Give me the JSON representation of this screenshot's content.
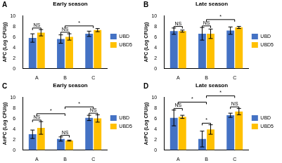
{
  "chart_data": [
    {
      "type": "bar",
      "panel_label": "A",
      "title": "Early season",
      "y_label": "APC (Log CFU/g)",
      "categories": [
        "A",
        "B",
        "C"
      ],
      "series": [
        {
          "name": "UBD",
          "color": "#4472c4",
          "values": [
            5.8,
            5.6,
            6.6
          ],
          "errors": [
            0.8,
            0.8,
            0.5
          ]
        },
        {
          "name": "UBD5",
          "color": "#ffc000",
          "values": [
            6.8,
            6.0,
            7.3
          ],
          "errors": [
            0.6,
            0.6,
            0.3
          ]
        }
      ],
      "ylim": [
        0,
        10
      ],
      "yticks": [
        0,
        2,
        4,
        6,
        8,
        10
      ],
      "grid": false,
      "legend": "right",
      "annotations": [
        {
          "text": "NS",
          "span": [
            "A",
            "A"
          ]
        },
        {
          "text": "NS",
          "span": [
            "B",
            "B"
          ]
        },
        {
          "text": "*",
          "span": [
            "B",
            "C"
          ]
        }
      ]
    },
    {
      "type": "bar",
      "panel_label": "B",
      "title": "Late season",
      "y_label": "APC (Log CFU/g)",
      "categories": [
        "A",
        "B",
        "C"
      ],
      "series": [
        {
          "name": "UBD",
          "color": "#4472c4",
          "values": [
            7.1,
            6.6,
            7.2
          ],
          "errors": [
            0.6,
            1.2,
            0.7
          ]
        },
        {
          "name": "UBD5",
          "color": "#ffc000",
          "values": [
            7.1,
            6.6,
            7.8
          ],
          "errors": [
            0.2,
            0.9,
            0.2
          ]
        }
      ],
      "ylim": [
        0,
        10
      ],
      "yticks": [
        0,
        2,
        4,
        6,
        8,
        10
      ],
      "grid": false,
      "legend": "right",
      "annotations": [
        {
          "text": "NS",
          "span": [
            "A",
            "A"
          ]
        },
        {
          "text": "NS",
          "span": [
            "B",
            "B"
          ]
        },
        {
          "text": "*",
          "span": [
            "B",
            "C"
          ]
        }
      ]
    },
    {
      "type": "bar",
      "panel_label": "C",
      "title": "Early season",
      "y_label": "AnPC (Log CFU/g)",
      "categories": [
        "A",
        "B",
        "C"
      ],
      "series": [
        {
          "name": "UBD",
          "color": "#4472c4",
          "values": [
            3.0,
            2.1,
            6.1
          ],
          "errors": [
            0.8,
            0.4,
            0.5
          ]
        },
        {
          "name": "UBD5",
          "color": "#ffc000",
          "values": [
            4.2,
            1.8,
            6.0
          ],
          "errors": [
            1.2,
            0.1,
            0.7
          ]
        }
      ],
      "ylim": [
        0,
        10
      ],
      "yticks": [
        0,
        2,
        4,
        6,
        8,
        10
      ],
      "grid": false,
      "legend": "right",
      "annotations": [
        {
          "text": "NS",
          "span": [
            "A",
            "A"
          ]
        },
        {
          "text": "NS",
          "span": [
            "B",
            "B"
          ]
        },
        {
          "text": "NS",
          "span": [
            "C",
            "C"
          ]
        },
        {
          "text": "*",
          "span": [
            "A",
            "B"
          ]
        },
        {
          "text": "*",
          "span": [
            "B",
            "C"
          ]
        }
      ]
    },
    {
      "type": "bar",
      "panel_label": "D",
      "title": "Late season",
      "y_label": "AnPC (Log CFU/g)",
      "categories": [
        "A",
        "B",
        "C"
      ],
      "series": [
        {
          "name": "UBD",
          "color": "#4472c4",
          "values": [
            6.1,
            2.1,
            6.6
          ],
          "errors": [
            1.5,
            1.5,
            0.4
          ]
        },
        {
          "name": "UBD5",
          "color": "#ffc000",
          "values": [
            6.3,
            3.9,
            7.3
          ],
          "errors": [
            0.3,
            0.9,
            0.6
          ]
        }
      ],
      "ylim": [
        0,
        10
      ],
      "yticks": [
        0,
        2,
        4,
        6,
        8,
        10
      ],
      "grid": false,
      "legend": "right",
      "annotations": [
        {
          "text": "NS",
          "span": [
            "A",
            "A"
          ]
        },
        {
          "text": "*",
          "span": [
            "B",
            "B"
          ]
        },
        {
          "text": "NS",
          "span": [
            "C",
            "C"
          ]
        },
        {
          "text": "*",
          "span": [
            "A",
            "B"
          ]
        },
        {
          "text": "*",
          "span": [
            "B",
            "C"
          ]
        }
      ]
    }
  ]
}
